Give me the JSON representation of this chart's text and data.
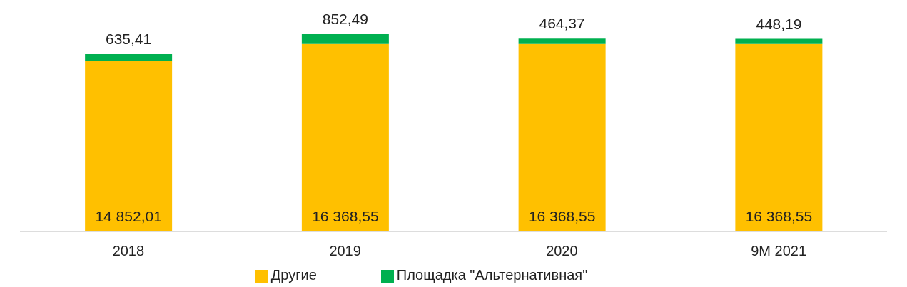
{
  "chart_data": {
    "type": "bar",
    "stacked": true,
    "categories": [
      "2018",
      "2019",
      "2020",
      "9M 2021"
    ],
    "series": [
      {
        "name": "Другие",
        "color": "#ffc000",
        "values": [
          14852.01,
          16368.55,
          16368.55,
          16368.55
        ],
        "value_labels": [
          "14 852,01",
          "16 368,55",
          "16 368,55",
          "16 368,55"
        ]
      },
      {
        "name": "Площадка \"Альтернативная\"",
        "color": "#00b050",
        "values": [
          635.41,
          852.49,
          464.37,
          448.19
        ],
        "value_labels": [
          "635,41",
          "852,49",
          "464,37",
          "448,19"
        ]
      }
    ],
    "legend": "bottom",
    "grid": false
  }
}
